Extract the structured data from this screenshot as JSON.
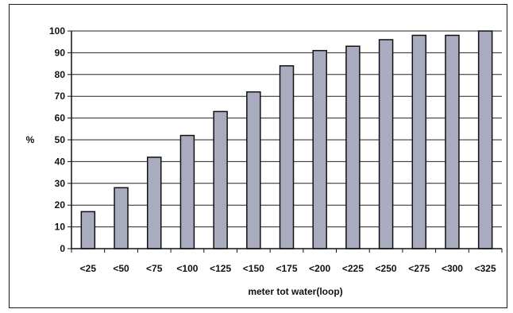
{
  "chart_data": {
    "type": "bar",
    "title": "",
    "xlabel": "meter tot water(loop)",
    "ylabel": "%",
    "categories": [
      "<25",
      "<50",
      "<75",
      "<100",
      "<125",
      "<150",
      "<175",
      "<200",
      "<225",
      "<250",
      "<275",
      "<300",
      "<325"
    ],
    "series": [
      {
        "values": [
          17,
          28,
          42,
          52,
          63,
          72,
          84,
          91,
          93,
          96,
          98,
          98,
          100
        ]
      }
    ],
    "ylim": [
      0,
      100
    ],
    "yticks": [
      0,
      10,
      20,
      30,
      40,
      50,
      60,
      70,
      80,
      90,
      100
    ],
    "grid": true,
    "legend": "none",
    "colors": {
      "bar_fill": "#a9abbe",
      "bar_stroke": "#111111",
      "grid": "#222222",
      "axis": "#111111"
    }
  }
}
